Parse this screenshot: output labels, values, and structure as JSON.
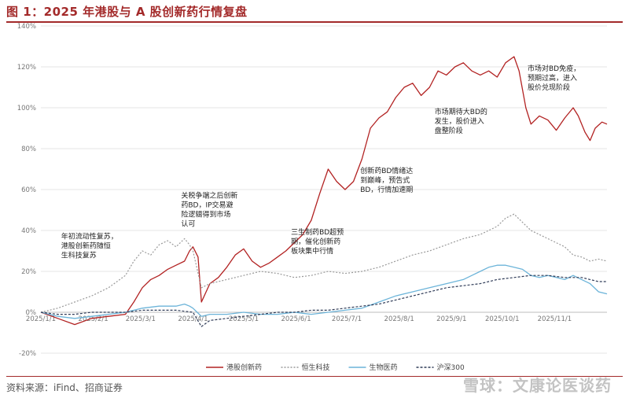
{
  "figure": {
    "title": "图 1：2025 年港股与 A 股创新药行情复盘",
    "source": "资料来源：iFind、招商证券",
    "watermark": "雪球：文康论医谈药"
  },
  "chart_data": {
    "type": "line",
    "title": "",
    "xlabel": "",
    "ylabel": "",
    "x_ticks": [
      {
        "label": "2025/1/1",
        "day": 0
      },
      {
        "label": "2025/2/1",
        "day": 31
      },
      {
        "label": "2025/3/1",
        "day": 59
      },
      {
        "label": "2025/4/1",
        "day": 90
      },
      {
        "label": "2025/5/1",
        "day": 120
      },
      {
        "label": "2025/6/1",
        "day": 151
      },
      {
        "label": "2025/7/1",
        "day": 181
      },
      {
        "label": "2025/8/1",
        "day": 212
      },
      {
        "label": "2025/9/1",
        "day": 243
      },
      {
        "label": "2025/10/1",
        "day": 273
      },
      {
        "label": "2025/11/1",
        "day": 304
      }
    ],
    "y_ticks": [
      "-20%",
      "0%",
      "20%",
      "40%",
      "60%",
      "80%",
      "100%",
      "120%",
      "140%"
    ],
    "ylim": [
      -20,
      140
    ],
    "xlim_days": [
      0,
      335
    ],
    "grid": "horizontal",
    "legend_position": "bottom",
    "series": [
      {
        "name": "港股创新药",
        "color": "#b22222",
        "style": "solid",
        "points": [
          [
            0,
            0
          ],
          [
            10,
            -3
          ],
          [
            20,
            -6
          ],
          [
            30,
            -3
          ],
          [
            40,
            -2
          ],
          [
            50,
            -1
          ],
          [
            55,
            5
          ],
          [
            60,
            12
          ],
          [
            65,
            16
          ],
          [
            70,
            18
          ],
          [
            75,
            21
          ],
          [
            80,
            23
          ],
          [
            85,
            25
          ],
          [
            88,
            30
          ],
          [
            90,
            32
          ],
          [
            93,
            27
          ],
          [
            95,
            5
          ],
          [
            100,
            14
          ],
          [
            105,
            17
          ],
          [
            110,
            22
          ],
          [
            115,
            28
          ],
          [
            120,
            31
          ],
          [
            125,
            25
          ],
          [
            130,
            22
          ],
          [
            135,
            24
          ],
          [
            140,
            27
          ],
          [
            145,
            30
          ],
          [
            150,
            34
          ],
          [
            155,
            38
          ],
          [
            160,
            45
          ],
          [
            165,
            58
          ],
          [
            170,
            70
          ],
          [
            175,
            64
          ],
          [
            180,
            60
          ],
          [
            185,
            64
          ],
          [
            190,
            75
          ],
          [
            195,
            90
          ],
          [
            200,
            95
          ],
          [
            205,
            98
          ],
          [
            210,
            105
          ],
          [
            215,
            110
          ],
          [
            220,
            112
          ],
          [
            225,
            106
          ],
          [
            230,
            110
          ],
          [
            235,
            118
          ],
          [
            240,
            116
          ],
          [
            245,
            120
          ],
          [
            250,
            122
          ],
          [
            255,
            118
          ],
          [
            260,
            116
          ],
          [
            265,
            118
          ],
          [
            270,
            115
          ],
          [
            275,
            122
          ],
          [
            280,
            125
          ],
          [
            283,
            118
          ],
          [
            287,
            100
          ],
          [
            290,
            92
          ],
          [
            295,
            96
          ],
          [
            300,
            94
          ],
          [
            305,
            89
          ],
          [
            310,
            95
          ],
          [
            315,
            100
          ],
          [
            318,
            96
          ],
          [
            322,
            88
          ],
          [
            325,
            84
          ],
          [
            328,
            90
          ],
          [
            332,
            93
          ],
          [
            335,
            92
          ]
        ]
      },
      {
        "name": "恒生科技",
        "color": "#999999",
        "style": "dotted",
        "points": [
          [
            0,
            0
          ],
          [
            10,
            2
          ],
          [
            20,
            5
          ],
          [
            30,
            8
          ],
          [
            40,
            12
          ],
          [
            50,
            18
          ],
          [
            55,
            25
          ],
          [
            60,
            30
          ],
          [
            65,
            28
          ],
          [
            70,
            33
          ],
          [
            75,
            35
          ],
          [
            80,
            32
          ],
          [
            85,
            36
          ],
          [
            88,
            33
          ],
          [
            90,
            30
          ],
          [
            95,
            12
          ],
          [
            100,
            14
          ],
          [
            110,
            16
          ],
          [
            120,
            18
          ],
          [
            130,
            20
          ],
          [
            140,
            19
          ],
          [
            150,
            17
          ],
          [
            160,
            18
          ],
          [
            170,
            20
          ],
          [
            180,
            19
          ],
          [
            190,
            20
          ],
          [
            200,
            22
          ],
          [
            210,
            25
          ],
          [
            220,
            28
          ],
          [
            230,
            30
          ],
          [
            240,
            33
          ],
          [
            250,
            36
          ],
          [
            260,
            38
          ],
          [
            270,
            42
          ],
          [
            275,
            46
          ],
          [
            280,
            48
          ],
          [
            285,
            44
          ],
          [
            290,
            40
          ],
          [
            295,
            38
          ],
          [
            300,
            36
          ],
          [
            305,
            34
          ],
          [
            310,
            32
          ],
          [
            315,
            28
          ],
          [
            320,
            27
          ],
          [
            325,
            25
          ],
          [
            330,
            26
          ],
          [
            335,
            25
          ]
        ]
      },
      {
        "name": "生物医药",
        "color": "#6cb4d9",
        "style": "solid",
        "points": [
          [
            0,
            0
          ],
          [
            10,
            -2
          ],
          [
            20,
            -3
          ],
          [
            30,
            -2
          ],
          [
            40,
            -1
          ],
          [
            50,
            0
          ],
          [
            60,
            2
          ],
          [
            70,
            3
          ],
          [
            80,
            3
          ],
          [
            85,
            4
          ],
          [
            88,
            3
          ],
          [
            90,
            2
          ],
          [
            95,
            -2
          ],
          [
            100,
            -1
          ],
          [
            110,
            -1
          ],
          [
            120,
            0
          ],
          [
            130,
            -1
          ],
          [
            140,
            -1
          ],
          [
            150,
            0
          ],
          [
            160,
            -1
          ],
          [
            170,
            0
          ],
          [
            180,
            1
          ],
          [
            190,
            2
          ],
          [
            200,
            5
          ],
          [
            210,
            8
          ],
          [
            220,
            10
          ],
          [
            230,
            12
          ],
          [
            240,
            14
          ],
          [
            250,
            16
          ],
          [
            255,
            18
          ],
          [
            260,
            20
          ],
          [
            265,
            22
          ],
          [
            270,
            23
          ],
          [
            275,
            23
          ],
          [
            280,
            22
          ],
          [
            285,
            21
          ],
          [
            290,
            18
          ],
          [
            295,
            17
          ],
          [
            300,
            18
          ],
          [
            305,
            17
          ],
          [
            310,
            16
          ],
          [
            315,
            18
          ],
          [
            320,
            16
          ],
          [
            325,
            14
          ],
          [
            330,
            10
          ],
          [
            335,
            9
          ]
        ]
      },
      {
        "name": "沪深300",
        "color": "#2f3b57",
        "style": "dashed",
        "points": [
          [
            0,
            0
          ],
          [
            10,
            -1
          ],
          [
            20,
            -1
          ],
          [
            30,
            0
          ],
          [
            40,
            0
          ],
          [
            50,
            0
          ],
          [
            60,
            1
          ],
          [
            70,
            1
          ],
          [
            80,
            1
          ],
          [
            90,
            0
          ],
          [
            95,
            -7
          ],
          [
            100,
            -4
          ],
          [
            110,
            -3
          ],
          [
            120,
            -2
          ],
          [
            130,
            -1
          ],
          [
            140,
            0
          ],
          [
            150,
            0
          ],
          [
            160,
            1
          ],
          [
            170,
            1
          ],
          [
            180,
            2
          ],
          [
            190,
            3
          ],
          [
            200,
            4
          ],
          [
            210,
            6
          ],
          [
            220,
            8
          ],
          [
            230,
            10
          ],
          [
            240,
            12
          ],
          [
            250,
            13
          ],
          [
            260,
            14
          ],
          [
            270,
            16
          ],
          [
            280,
            17
          ],
          [
            290,
            18
          ],
          [
            300,
            18
          ],
          [
            310,
            17
          ],
          [
            320,
            17
          ],
          [
            325,
            16
          ],
          [
            330,
            15
          ],
          [
            335,
            15
          ]
        ]
      }
    ],
    "annotations": [
      {
        "lines": [
          "年初流动性复苏，",
          "港股创新药随恒",
          "生科技复苏"
        ],
        "day": 12,
        "y": 36
      },
      {
        "lines": [
          "关税争端之后创新",
          "药BD，IP交易避",
          "险逻辑得到市场",
          "认可"
        ],
        "day": 83,
        "y": 56
      },
      {
        "lines": [
          "三生制药BD超预",
          "期，催化创新药",
          "板块集中行情"
        ],
        "day": 148,
        "y": 38
      },
      {
        "lines": [
          "创新药BD情绪达",
          "到巅峰，预告式",
          "BD，行情加速期"
        ],
        "day": 189,
        "y": 68
      },
      {
        "lines": [
          "市场期待大BD的",
          "发生，股价进入",
          "盘整阶段"
        ],
        "day": 233,
        "y": 97
      },
      {
        "lines": [
          "市场对BD免疫，",
          "预期过高，进入",
          "股价兑现阶段"
        ],
        "day": 288,
        "y": 118
      }
    ]
  }
}
